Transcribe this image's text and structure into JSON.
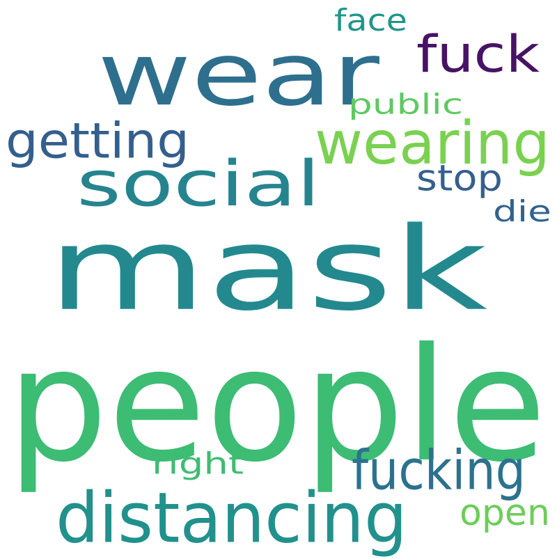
{
  "words": {
    "mask": {
      "text": "mask",
      "color": "#23898e"
    },
    "people": {
      "text": "people",
      "color": "#3dbc74"
    },
    "wear": {
      "text": "wear",
      "color": "#2e6f8e"
    },
    "social": {
      "text": "social",
      "color": "#25848e"
    },
    "distancing": {
      "text": "distancing",
      "color": "#21918c"
    },
    "fuck": {
      "text": "fuck",
      "color": "#471365"
    },
    "wearing": {
      "text": "wearing",
      "color": "#7ad151"
    },
    "getting": {
      "text": "getting",
      "color": "#345f8d"
    },
    "fucking": {
      "text": "fucking",
      "color": "#2c728e"
    },
    "stop": {
      "text": "stop",
      "color": "#355f8d"
    },
    "face": {
      "text": "face",
      "color": "#1f968b"
    },
    "open": {
      "text": "open",
      "color": "#6ccd5a"
    },
    "public": {
      "text": "public",
      "color": "#5ec962"
    },
    "die": {
      "text": "die",
      "color": "#33638d"
    },
    "right": {
      "text": "right",
      "color": "#3fbc73"
    }
  }
}
